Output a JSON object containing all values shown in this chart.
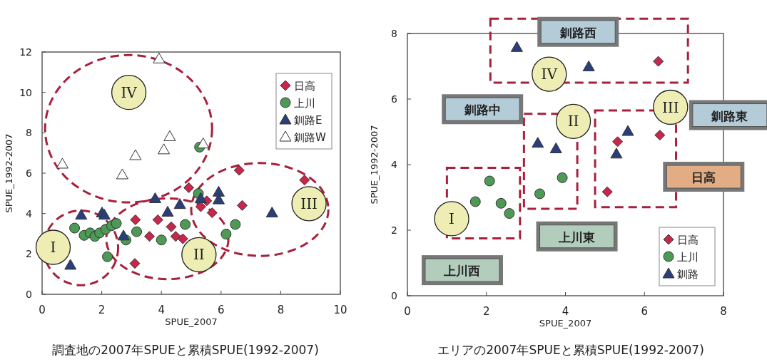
{
  "chart_data": [
    {
      "type": "scatter",
      "title": "調査地の2007年SPUEと累積SPUE(1992-2007)",
      "xlabel": "SPUE_2007",
      "ylabel": "SPUE_1992-2007",
      "xlim": [
        0,
        10
      ],
      "ylim": [
        0,
        12
      ],
      "xticks": [
        0,
        2,
        4,
        6,
        8,
        10
      ],
      "yticks": [
        0,
        2,
        4,
        6,
        8,
        10,
        12
      ],
      "legend": "top right",
      "grid": false,
      "annotations": [
        "I",
        "II",
        "III",
        "IV"
      ],
      "series": [
        {
          "name": "日高",
          "color": "#c8264a",
          "marker": "diamond",
          "x": [
            6.61,
            8.8,
            4.92,
            6.71,
            5.52,
            5.32,
            5.7,
            3.13,
            3.88,
            4.33,
            3.6,
            4.48,
            4.72,
            3.11
          ],
          "values": [
            6.14,
            5.66,
            5.28,
            4.4,
            4.63,
            4.34,
            4.04,
            3.69,
            3.69,
            3.34,
            2.87,
            2.87,
            2.75,
            1.53
          ]
        },
        {
          "name": "上川",
          "color": "#4c9a55",
          "marker": "circle",
          "x": [
            5.28,
            5.24,
            1.09,
            1.41,
            1.61,
            1.77,
            1.93,
            2.13,
            2.33,
            2.49,
            2.81,
            3.17,
            4.0,
            4.8,
            2.19,
            6.17,
            6.48
          ],
          "values": [
            7.29,
            4.99,
            3.28,
            2.92,
            3.04,
            2.87,
            3.04,
            3.22,
            3.4,
            3.51,
            2.69,
            3.1,
            2.69,
            3.46,
            1.86,
            2.98,
            3.46
          ]
        },
        {
          "name": "釧路E",
          "color": "#2a3f7a",
          "marker": "triangle",
          "x": [
            0.95,
            1.31,
            2.01,
            2.09,
            2.73,
            3.79,
            4.21,
            4.62,
            5.32,
            5.92,
            5.92,
            7.71
          ],
          "values": [
            1.45,
            3.93,
            4.04,
            3.93,
            2.9,
            4.75,
            4.08,
            4.46,
            4.75,
            5.07,
            4.69,
            4.04
          ]
        },
        {
          "name": "釧路W",
          "color": "#ffffff",
          "marker": "triangle",
          "x": [
            3.92,
            0.68,
            2.69,
            3.13,
            4.28,
            4.08,
            5.4
          ],
          "values": [
            11.67,
            6.46,
            5.93,
            6.88,
            7.82,
            7.17,
            7.46
          ]
        }
      ]
    },
    {
      "type": "scatter",
      "title": "エリアの2007年SPUEと累積SPUE(1992-2007)",
      "xlabel": "SPUE_2007",
      "ylabel": "SPUE_1992-2007",
      "xlim": [
        0,
        8
      ],
      "ylim": [
        0,
        8
      ],
      "xticks": [
        0,
        2,
        4,
        6,
        8
      ],
      "yticks": [
        0,
        2,
        4,
        6,
        8
      ],
      "legend": "bottom right",
      "grid": false,
      "annotations": [
        "I",
        "II",
        "III",
        "IV",
        "釧路西",
        "釧路中",
        "釧路東",
        "日高",
        "上川東",
        "上川西"
      ],
      "series": [
        {
          "name": "日高",
          "color": "#c8264a",
          "marker": "diamond",
          "x": [
            6.35,
            6.39,
            5.32,
            5.06
          ],
          "values": [
            7.15,
            4.9,
            4.7,
            3.17
          ]
        },
        {
          "name": "上川",
          "color": "#4c9a55",
          "marker": "circle",
          "x": [
            1.72,
            2.08,
            2.37,
            2.58,
            3.35,
            3.92
          ],
          "values": [
            2.87,
            3.5,
            2.82,
            2.51,
            3.11,
            3.6
          ]
        },
        {
          "name": "釧路",
          "color": "#2a3f7a",
          "marker": "triangle",
          "x": [
            2.77,
            4.59,
            3.3,
            3.76,
            5.29,
            5.58
          ],
          "values": [
            7.58,
            6.99,
            4.66,
            4.49,
            4.33,
            5.02
          ]
        }
      ]
    }
  ]
}
